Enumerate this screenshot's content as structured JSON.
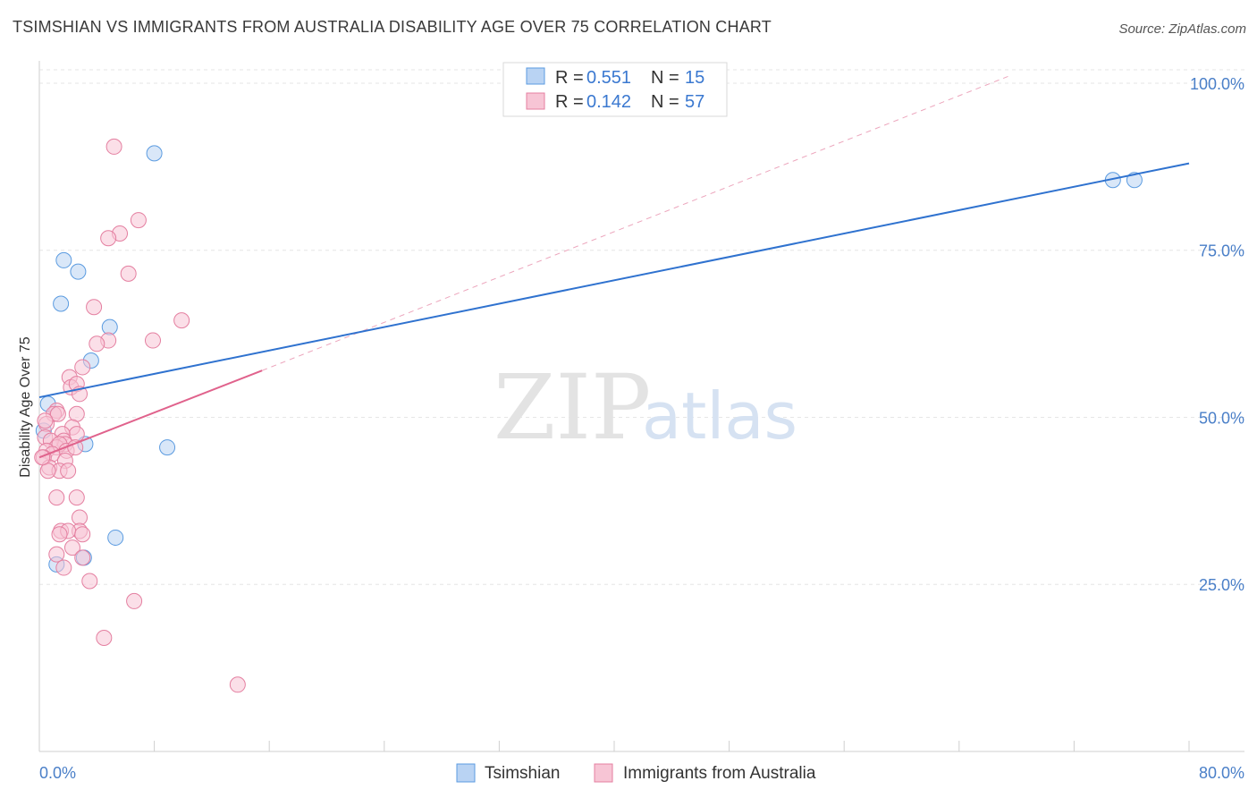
{
  "header": {
    "title": "TSIMSHIAN VS IMMIGRANTS FROM AUSTRALIA DISABILITY AGE OVER 75 CORRELATION CHART",
    "source": "Source: ZipAtlas.com"
  },
  "watermark": {
    "zip": "ZIP",
    "atlas": "atlas"
  },
  "chart_data": {
    "type": "scatter",
    "title": "TSIMSHIAN VS IMMIGRANTS FROM AUSTRALIA DISABILITY AGE OVER 75 CORRELATION CHART",
    "xlabel": "",
    "ylabel": "Disability Age Over 75",
    "xlim": [
      0,
      80
    ],
    "ylim": [
      0,
      102
    ],
    "x_tick_labels": [
      "0.0%",
      "80.0%"
    ],
    "y_tick_labels": [
      "100.0%",
      "75.0%",
      "50.0%",
      "25.0%"
    ],
    "y_ticks": [
      100,
      75,
      50,
      25
    ],
    "grid": true,
    "legend_position": "top-center",
    "series": [
      {
        "name": "Tsimshian",
        "color": "#5b9be0",
        "fill": "#b9d3f3",
        "R": "0.551",
        "N": "15",
        "points": [
          [
            8.0,
            89.5
          ],
          [
            1.7,
            73.5
          ],
          [
            2.7,
            71.8
          ],
          [
            1.5,
            67.0
          ],
          [
            4.9,
            63.5
          ],
          [
            3.6,
            58.5
          ],
          [
            0.6,
            52.0
          ],
          [
            3.2,
            46.0
          ],
          [
            8.9,
            45.5
          ],
          [
            5.3,
            32.0
          ],
          [
            1.2,
            28.0
          ],
          [
            3.1,
            29.0
          ],
          [
            74.7,
            85.5
          ],
          [
            76.2,
            85.5
          ],
          [
            0.3,
            48.0
          ]
        ],
        "trend": {
          "x": [
            0,
            80
          ],
          "y": [
            53.0,
            88.0
          ],
          "style": "solid"
        }
      },
      {
        "name": "Immigrants from Australia",
        "color": "#e47fa0",
        "fill": "#f7c5d5",
        "R": "0.142",
        "N": "57",
        "points": [
          [
            5.2,
            90.5
          ],
          [
            6.9,
            79.5
          ],
          [
            5.6,
            77.5
          ],
          [
            4.8,
            76.8
          ],
          [
            6.2,
            71.5
          ],
          [
            3.8,
            66.5
          ],
          [
            9.9,
            64.5
          ],
          [
            7.9,
            61.5
          ],
          [
            4.8,
            61.5
          ],
          [
            4.0,
            61.0
          ],
          [
            3.0,
            57.5
          ],
          [
            2.1,
            56.0
          ],
          [
            2.2,
            54.5
          ],
          [
            2.6,
            55.0
          ],
          [
            2.8,
            53.5
          ],
          [
            1.2,
            51.0
          ],
          [
            1.0,
            50.5
          ],
          [
            1.3,
            50.5
          ],
          [
            2.6,
            50.5
          ],
          [
            2.3,
            48.5
          ],
          [
            0.5,
            49.0
          ],
          [
            2.6,
            47.5
          ],
          [
            1.6,
            47.5
          ],
          [
            0.4,
            47.0
          ],
          [
            1.7,
            46.5
          ],
          [
            1.8,
            46.0
          ],
          [
            0.8,
            46.5
          ],
          [
            1.2,
            45.5
          ],
          [
            1.4,
            46.0
          ],
          [
            0.5,
            45.0
          ],
          [
            1.9,
            45.0
          ],
          [
            0.9,
            44.5
          ],
          [
            0.3,
            44.0
          ],
          [
            1.8,
            43.5
          ],
          [
            0.7,
            42.5
          ],
          [
            1.4,
            42.0
          ],
          [
            0.6,
            42.0
          ],
          [
            2.0,
            42.0
          ],
          [
            1.2,
            38.0
          ],
          [
            2.6,
            38.0
          ],
          [
            2.8,
            35.0
          ],
          [
            1.5,
            33.0
          ],
          [
            2.8,
            33.0
          ],
          [
            2.0,
            33.0
          ],
          [
            1.4,
            32.5
          ],
          [
            3.0,
            32.5
          ],
          [
            2.3,
            30.5
          ],
          [
            1.2,
            29.5
          ],
          [
            3.0,
            29.0
          ],
          [
            1.7,
            27.5
          ],
          [
            3.5,
            25.5
          ],
          [
            6.6,
            22.5
          ],
          [
            4.5,
            17.0
          ],
          [
            13.8,
            10.0
          ],
          [
            0.2,
            44.0
          ],
          [
            0.4,
            49.5
          ],
          [
            2.5,
            45.5
          ]
        ],
        "trend": {
          "x": [
            0,
            15.5
          ],
          "y": [
            44.0,
            57.0
          ],
          "style": "solid"
        },
        "trend_extension": {
          "x": [
            15.5,
            67.4
          ],
          "y": [
            57.0,
            101.0
          ],
          "style": "dashed"
        }
      }
    ]
  },
  "legend": {
    "rows": [
      {
        "r_label": "R = ",
        "r_value": "0.551",
        "n_label": "N = ",
        "n_value": "15"
      },
      {
        "r_label": "R = ",
        "r_value": "0.142",
        "n_label": "N = ",
        "n_value": "57"
      }
    ],
    "bottom": [
      {
        "label": "Tsimshian"
      },
      {
        "label": "Immigrants from Australia"
      }
    ]
  }
}
